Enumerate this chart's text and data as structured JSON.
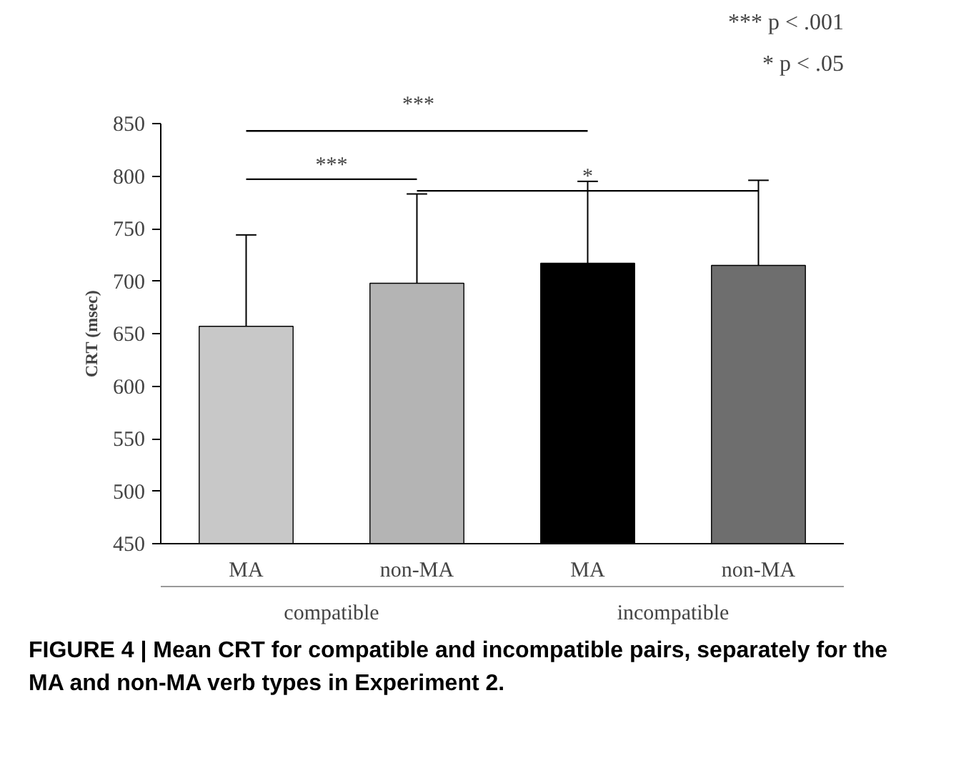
{
  "chart_data": {
    "type": "bar",
    "ylabel": "CRT (msec)",
    "categories": [
      "MA",
      "non-MA",
      "MA",
      "non-MA"
    ],
    "values": [
      657,
      698,
      717,
      715
    ],
    "colors": [
      "#c8c8c8",
      "#b4b4b4",
      "#000000",
      "#6e6e6e"
    ],
    "errors": [
      [
        657,
        744
      ],
      [
        698,
        783
      ],
      [
        717,
        795
      ],
      [
        715,
        796
      ]
    ],
    "ylim": [
      450,
      850
    ],
    "yticks": [
      450,
      500,
      550,
      600,
      650,
      700,
      750,
      800,
      850
    ],
    "grid": false,
    "annotations": [
      "***",
      "***",
      "*",
      "*** p < .001",
      "* p < .05",
      "compatible",
      "incompatible",
      "FIGURE 4 | Mean CRT for compatible and incompatible pairs, separately for the MA and non-MA verb types in Experiment 2."
    ]
  }
}
